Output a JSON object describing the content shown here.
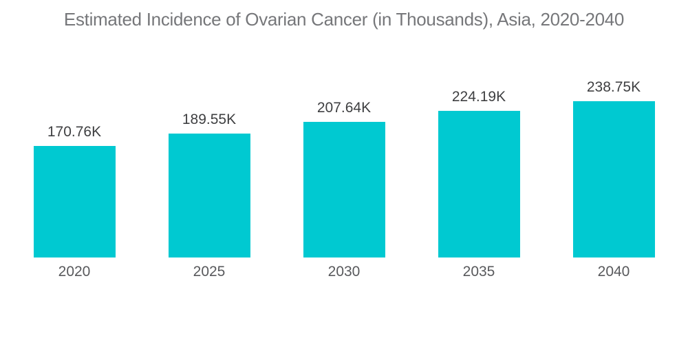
{
  "page": {
    "background": "#ffffff"
  },
  "chart_data": {
    "type": "bar",
    "title": "Estimated Incidence of Ovarian Cancer (in Thousands), Asia, 2020-2040",
    "categories": [
      "2020",
      "2025",
      "2030",
      "2035",
      "2040"
    ],
    "values": [
      170.76,
      189.55,
      207.64,
      224.19,
      238.75
    ],
    "value_labels": [
      "170.76K",
      "189.55K",
      "207.64K",
      "224.19K",
      "238.75K"
    ],
    "unit": "Thousands",
    "xlabel": "",
    "ylabel": "",
    "ylim": [
      0,
      250
    ],
    "grid": false,
    "legend": false,
    "axes_visible": false,
    "bar_color": "#00c9d1",
    "title_color": "#76777a",
    "value_label_color": "#3e3f41",
    "category_label_color": "#58595c"
  }
}
